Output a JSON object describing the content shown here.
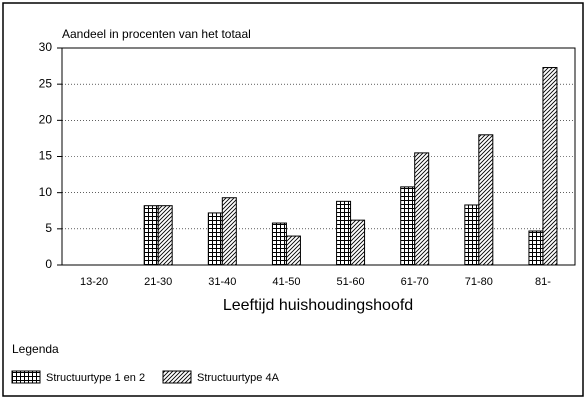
{
  "chart_data": {
    "type": "bar",
    "title": "Aandeel in procenten van het totaal",
    "x_label": "Leeftijd huishoudingshoofd",
    "legend_title": "Legenda",
    "categories": [
      "13-20",
      "21-30",
      "31-40",
      "41-50",
      "51-60",
      "61-70",
      "71-80",
      "81-"
    ],
    "series": [
      {
        "name": "Structuurtype 1 en 2",
        "color": "#000000",
        "pattern": "grid",
        "values": [
          0,
          8.2,
          7.2,
          5.8,
          8.8,
          10.8,
          8.3,
          4.7
        ]
      },
      {
        "name": "Structuurtype 4A",
        "color": "#000000",
        "pattern": "hatch",
        "values": [
          0,
          8.2,
          9.3,
          4,
          6.2,
          15.5,
          18,
          27.3
        ]
      }
    ],
    "ylim": [
      0,
      30
    ],
    "yticks": [
      0,
      5,
      10,
      15,
      20,
      25,
      30
    ],
    "grid": true
  }
}
